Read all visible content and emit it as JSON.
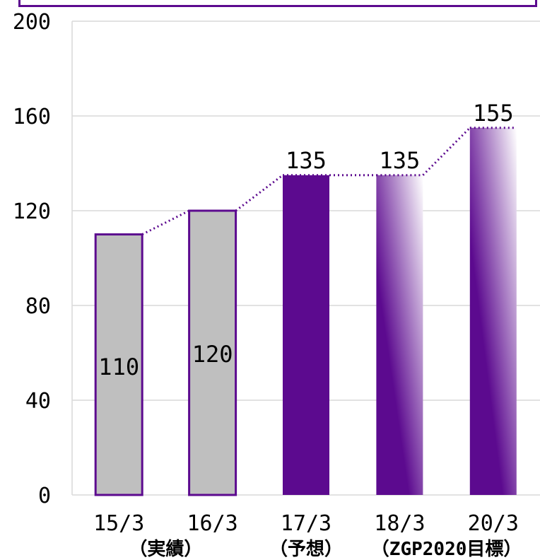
{
  "chart_data": {
    "type": "bar",
    "title": "",
    "xlabel": "",
    "ylabel": "",
    "ylim": [
      0,
      200
    ],
    "yticks": [
      0,
      40,
      80,
      120,
      160,
      200
    ],
    "categories": [
      "15/3",
      "16/3",
      "17/3",
      "18/3",
      "20/3"
    ],
    "category_notes": [
      {
        "text": "（実績）",
        "spans": [
          0,
          1
        ]
      },
      {
        "text": "（予想）",
        "spans": [
          2,
          2
        ]
      },
      {
        "text": "（ZGP2020目標）",
        "spans": [
          3,
          4
        ]
      }
    ],
    "values": [
      110,
      120,
      135,
      135,
      155
    ],
    "data_labels": [
      "110",
      "120",
      "135",
      "135",
      "155"
    ],
    "bar_styles": [
      "actual",
      "actual",
      "forecast",
      "target",
      "target"
    ],
    "trend_line": "dotted",
    "grid": true,
    "colors": {
      "actual_fill": "#bfbfbf",
      "actual_border": "#5c0a8f",
      "forecast_fill": "#5c0a8f",
      "target_dark": "#5c0a8f",
      "target_light": "#ffffff",
      "trend": "#5c0a8f",
      "grid": "#d9d9d9"
    }
  }
}
